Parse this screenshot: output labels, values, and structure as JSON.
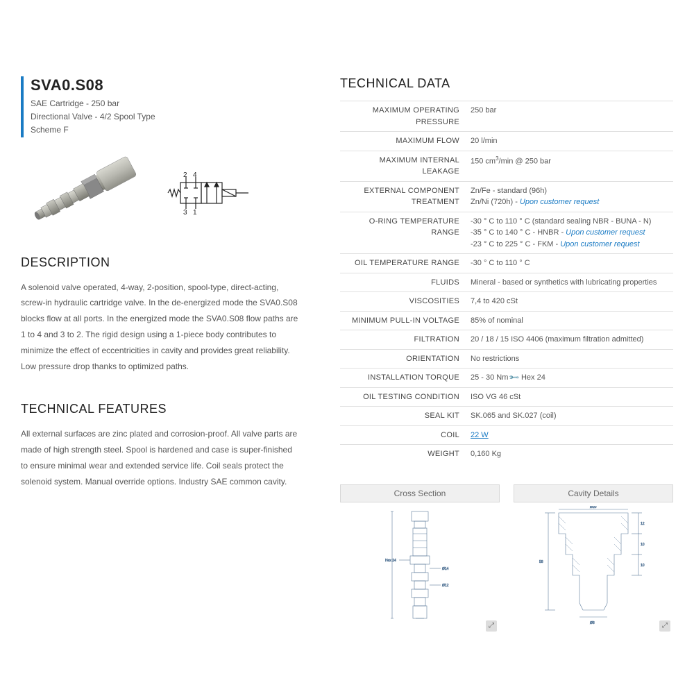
{
  "product": {
    "title": "SVA0.S08",
    "subtitle_lines": [
      "SAE Cartridge - 250 bar",
      "Directional Valve - 4/2 Spool Type",
      "Scheme F"
    ]
  },
  "sections": {
    "description_heading": "DESCRIPTION",
    "description_text": "A solenoid valve operated, 4-way, 2-position, spool-type, direct-acting, screw-in hydraulic cartridge valve. In the de-energized mode the SVA0.S08 blocks flow at all ports. In the energized mode the SVA0.S08 flow paths are 1 to 4 and 3 to 2. The rigid design using a 1-piece body contributes to minimize the effect of eccentricities in cavity and provides great reliability. Low pressure drop thanks to optimized paths.",
    "features_heading": "TECHNICAL FEATURES",
    "features_text": "All external surfaces are zinc plated and corrosion-proof. All valve parts are made of high strength steel. Spool is hardened and case is super-finished to ensure minimal wear and extended service life. Coil seals protect the solenoid system. Manual override options. Industry SAE common cavity.",
    "technical_data_heading": "TECHNICAL DATA"
  },
  "technical_data": [
    {
      "label": "MAXIMUM OPERATING PRESSURE",
      "value": "250 bar"
    },
    {
      "label": "MAXIMUM FLOW",
      "value": "20 l/min"
    },
    {
      "label": "MAXIMUM INTERNAL LEAKAGE",
      "value_html": "150 cm<span class='sup'>3</span>/min @ 250 bar"
    },
    {
      "label": "EXTERNAL COMPONENT TREATMENT",
      "value_html": "Zn/Fe - standard (96h)<br>Zn/Ni (720h) - <span class='link'>Upon customer request</span>"
    },
    {
      "label": "O-RING TEMPERATURE RANGE",
      "value_html": "-30 ° C to 110 ° C (standard sealing NBR - BUNA - N)<br>-35 ° C to 140 ° C - HNBR - <span class='link'>Upon customer request</span><br>-23 ° C to 225 ° C - FKM - <span class='link'>Upon customer request</span>"
    },
    {
      "label": "OIL TEMPERATURE RANGE",
      "value": "-30 ° C to 110 ° C"
    },
    {
      "label": "FLUIDS",
      "value": "Mineral - based or synthetics with lubricating properties"
    },
    {
      "label": "VISCOSITIES",
      "value": "7,4 to 420 cSt"
    },
    {
      "label": "MINIMUM PULL-IN VOLTAGE",
      "value": "85% of nominal"
    },
    {
      "label": "FILTRATION",
      "value": "20 / 18 / 15 ISO 4406 (maximum filtration admitted)"
    },
    {
      "label": "ORIENTATION",
      "value": "No restrictions"
    },
    {
      "label": "INSTALLATION TORQUE",
      "value_html": "25 - 30 Nm <span class='wrench'>🔧</span> Hex 24"
    },
    {
      "label": "OIL TESTING CONDITION",
      "value": "ISO VG 46 cSt"
    },
    {
      "label": "SEAL KIT",
      "value": "SK.065 and SK.027 (coil)"
    },
    {
      "label": "COIL",
      "value_html": "<span class='link-plain'>22 W</span>"
    },
    {
      "label": "WEIGHT",
      "value": "0,160 Kg"
    }
  ],
  "drawings": {
    "cross_section": "Cross Section",
    "cavity_details": "Cavity Details"
  },
  "schematic": {
    "port_labels": [
      "2",
      "4",
      "3",
      "1"
    ]
  },
  "colors": {
    "accent": "#1a7bc4",
    "text": "#4a4a4a",
    "border": "#e0e0e0",
    "drawing_stroke": "#5a7a9a"
  }
}
